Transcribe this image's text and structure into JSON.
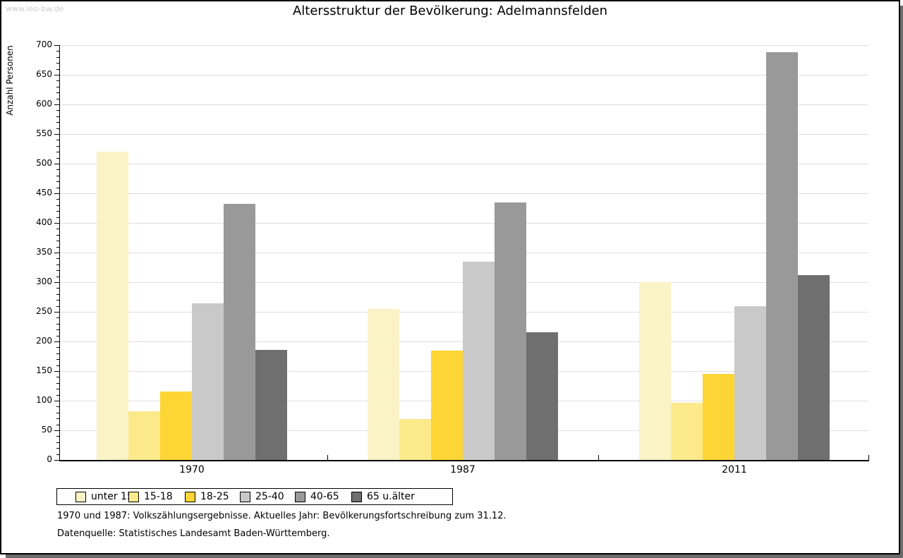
{
  "watermark": "www.leo-bw.de",
  "title": "Altersstruktur der Bevölkerung: Adelmannsfelden",
  "chart_data": {
    "type": "bar",
    "title": "Altersstruktur der Bevölkerung: Adelmannsfelden",
    "xlabel": "",
    "ylabel": "Anzahl Personen",
    "ylim": [
      0,
      700
    ],
    "ytick_step": 50,
    "yminor_tick_step": 10,
    "grid": true,
    "legend_position": "bottom",
    "categories": [
      "1970",
      "1987",
      "2011"
    ],
    "series": [
      {
        "name": "unter 15",
        "color": "#faf3c5",
        "values": [
          520,
          255,
          300
        ]
      },
      {
        "name": "15-18",
        "color": "#fce98a",
        "values": [
          82,
          69,
          97
        ]
      },
      {
        "name": "18-25",
        "color": "#fdd535",
        "values": [
          116,
          184,
          145
        ]
      },
      {
        "name": "25-40",
        "color": "#c9c9c9",
        "values": [
          264,
          335,
          259
        ]
      },
      {
        "name": "40-65",
        "color": "#999999",
        "values": [
          432,
          435,
          688
        ]
      },
      {
        "name": "65 u.älter",
        "color": "#6f6f6f",
        "values": [
          186,
          216,
          312
        ]
      }
    ]
  },
  "footnotes": [
    "1970 und 1987: Volkszählungsergebnisse. Aktuelles Jahr: Bevölkerungsfortschreibung zum 31.12.",
    "Datenquelle: Statistisches Landesamt Baden-Württemberg."
  ],
  "colors": {
    "shadow": "#6b6b6b",
    "grid": "#dfdfdf",
    "axis": "#000000",
    "watermark": "#cccccc",
    "background": "#ffffff"
  }
}
